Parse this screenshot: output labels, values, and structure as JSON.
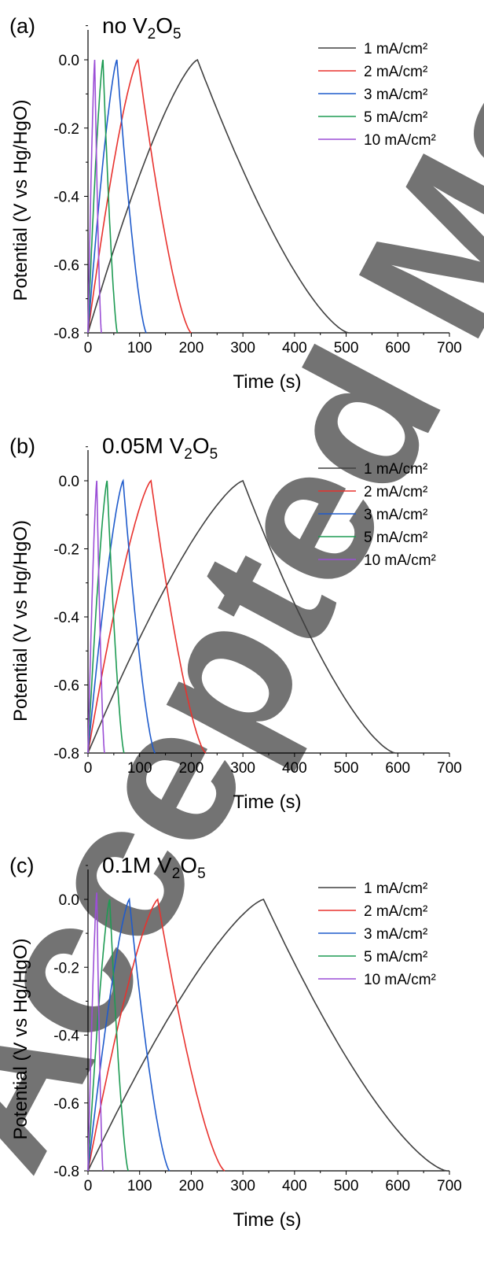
{
  "watermark": "Accepted Manuscript",
  "chart_data": [
    {
      "type": "line",
      "panel_label": "(a)",
      "title": "no V",
      "title_sub": "2",
      "title_mid": "O",
      "title_sub2": "5",
      "xlabel": "Time (s)",
      "ylabel": "Potential (V vs Hg/HgO)",
      "xlim": [
        0,
        700
      ],
      "ylim": [
        -0.8,
        0.0
      ],
      "xticks": [
        0,
        100,
        200,
        300,
        400,
        500,
        600,
        700
      ],
      "yticks": [
        0.0,
        -0.2,
        -0.4,
        -0.6,
        -0.8
      ],
      "ytick_labels": [
        "0.0",
        "-0.2",
        "-0.4",
        "-0.6",
        "-0.8"
      ],
      "legend_position": "top-right",
      "series": [
        {
          "name": "1 mA/cm²",
          "color": "#404040",
          "charge_end": 212,
          "discharge_end": 505,
          "peak": 0.0
        },
        {
          "name": "2 mA/cm²",
          "color": "#e8322e",
          "charge_end": 97,
          "discharge_end": 200,
          "peak": 0.0
        },
        {
          "name": "3 mA/cm²",
          "color": "#1f5bcc",
          "charge_end": 56,
          "discharge_end": 113,
          "peak": 0.0
        },
        {
          "name": "5 mA/cm²",
          "color": "#1e9b53",
          "charge_end": 29,
          "discharge_end": 57,
          "peak": 0.0
        },
        {
          "name": "10 mA/cm²",
          "color": "#9b4fd6",
          "charge_end": 13,
          "discharge_end": 26,
          "peak": 0.0
        }
      ]
    },
    {
      "type": "line",
      "panel_label": "(b)",
      "title": "0.05M V",
      "title_sub": "2",
      "title_mid": "O",
      "title_sub2": "5",
      "xlabel": "Time (s)",
      "ylabel": "Potential (V vs Hg/HgO)",
      "xlim": [
        0,
        700
      ],
      "ylim": [
        -0.8,
        0.0
      ],
      "xticks": [
        0,
        100,
        200,
        300,
        400,
        500,
        600,
        700
      ],
      "yticks": [
        0.0,
        -0.2,
        -0.4,
        -0.6,
        -0.8
      ],
      "ytick_labels": [
        "0.0",
        "-0.2",
        "-0.4",
        "-0.6",
        "-0.8"
      ],
      "legend_position": "top-right",
      "series": [
        {
          "name": "1 mA/cm²",
          "color": "#404040",
          "charge_end": 300,
          "discharge_end": 595,
          "peak": 0.0
        },
        {
          "name": "2 mA/cm²",
          "color": "#e8322e",
          "charge_end": 122,
          "discharge_end": 228,
          "peak": 0.0
        },
        {
          "name": "3 mA/cm²",
          "color": "#1f5bcc",
          "charge_end": 68,
          "discharge_end": 130,
          "peak": 0.0
        },
        {
          "name": "5 mA/cm²",
          "color": "#1e9b53",
          "charge_end": 37,
          "discharge_end": 70,
          "peak": 0.0
        },
        {
          "name": "10 mA/cm²",
          "color": "#9b4fd6",
          "charge_end": 17,
          "discharge_end": 32,
          "peak": 0.0
        }
      ]
    },
    {
      "type": "line",
      "panel_label": "(c)",
      "title": "0.1M V",
      "title_sub": "2",
      "title_mid": "O",
      "title_sub2": "5",
      "xlabel": "Time (s)",
      "ylabel": "Potential (V vs Hg/HgO)",
      "xlim": [
        0,
        700
      ],
      "ylim": [
        -0.8,
        0.0
      ],
      "xticks": [
        0,
        100,
        200,
        300,
        400,
        500,
        600,
        700
      ],
      "yticks": [
        0.0,
        -0.2,
        -0.4,
        -0.6,
        -0.8
      ],
      "ytick_labels": [
        "0.0",
        "-0.2",
        "-0.4",
        "-0.6",
        "-0.8"
      ],
      "legend_position": "top-right",
      "series": [
        {
          "name": "1 mA/cm²",
          "color": "#404040",
          "charge_end": 340,
          "discharge_end": 695,
          "peak": 0.0
        },
        {
          "name": "2 mA/cm²",
          "color": "#e8322e",
          "charge_end": 135,
          "discharge_end": 265,
          "peak": 0.0
        },
        {
          "name": "3 mA/cm²",
          "color": "#1f5bcc",
          "charge_end": 80,
          "discharge_end": 158,
          "peak": 0.0
        },
        {
          "name": "5 mA/cm²",
          "color": "#1e9b53",
          "charge_end": 42,
          "discharge_end": 78,
          "peak": 0.0
        },
        {
          "name": "10 mA/cm²",
          "color": "#9b4fd6",
          "charge_end": 17,
          "discharge_end": 29,
          "peak": 0.02
        }
      ]
    }
  ]
}
